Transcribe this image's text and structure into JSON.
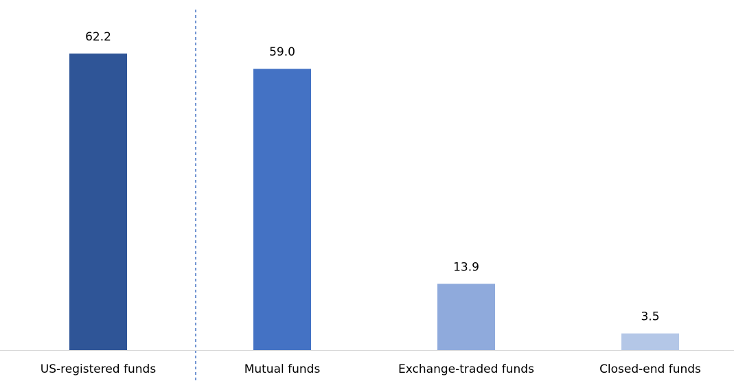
{
  "chart_data": {
    "type": "bar",
    "categories": [
      "US-registered funds",
      "Mutual funds",
      "Exchange-traded funds",
      "Closed-end funds"
    ],
    "values": [
      62.2,
      59.0,
      13.9,
      3.5
    ],
    "value_labels": [
      "62.2",
      "59.0",
      "13.9",
      "3.5"
    ],
    "colors": [
      "#2f5597",
      "#4472c4",
      "#8faadc",
      "#b4c7e7"
    ]
  }
}
